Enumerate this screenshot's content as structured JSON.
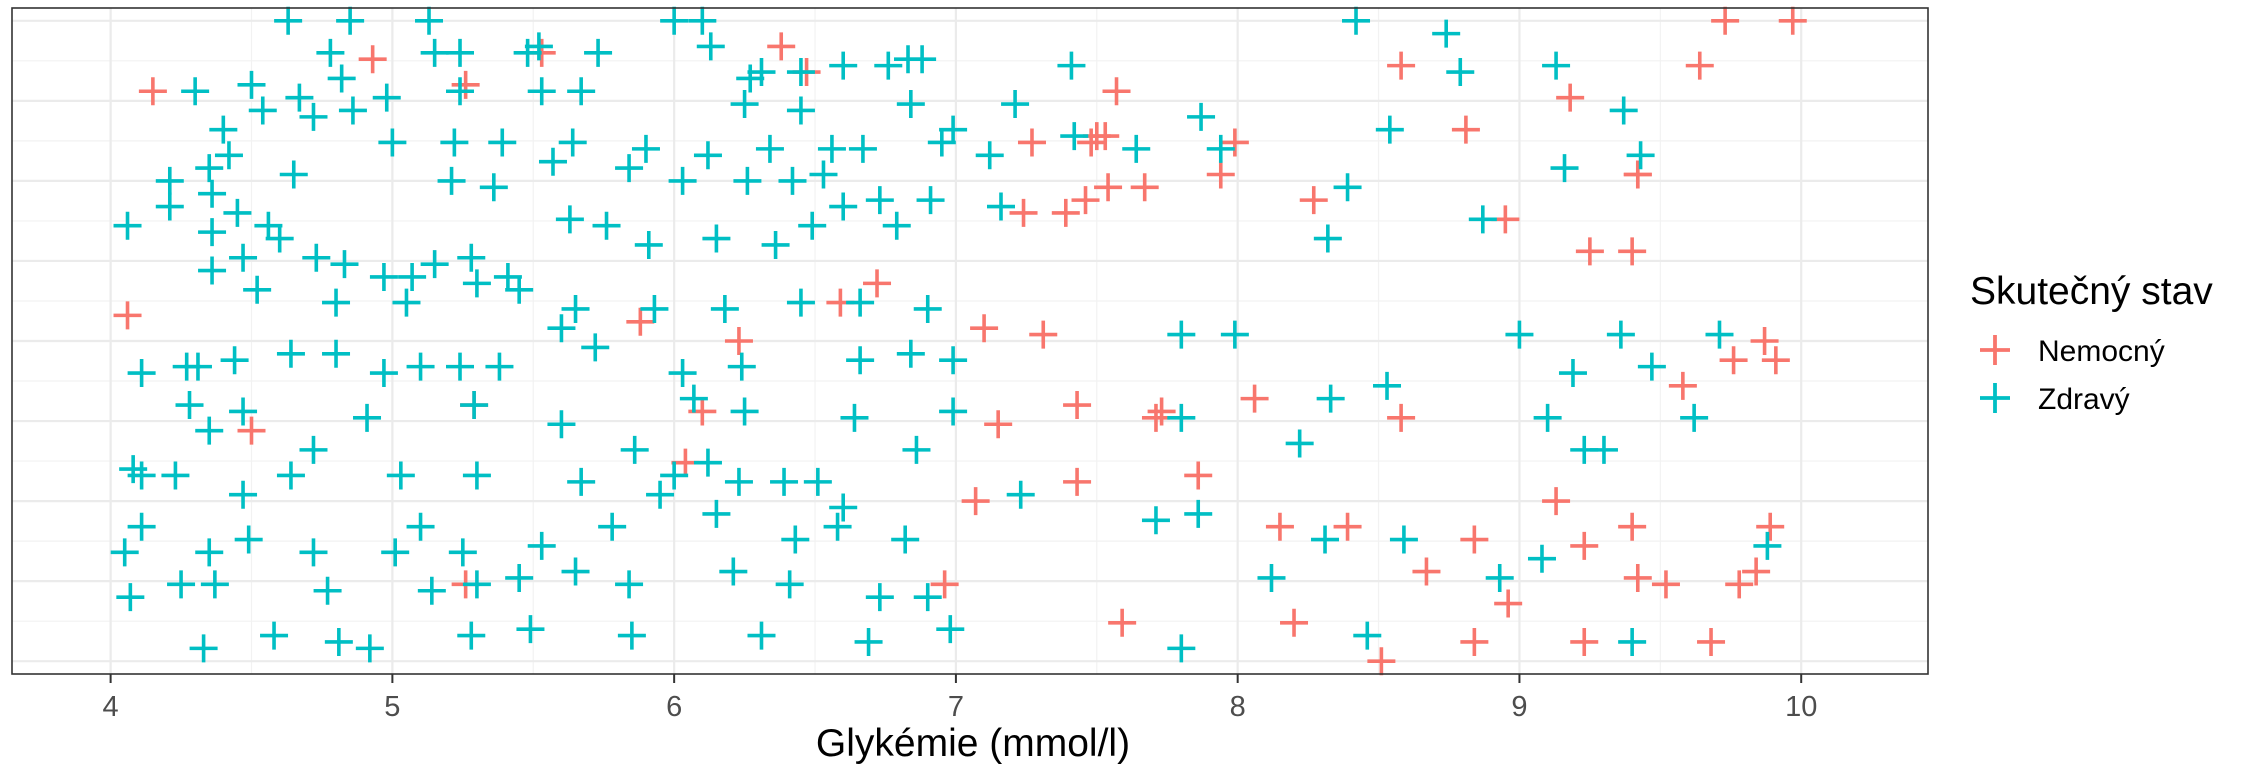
{
  "chart_data": {
    "type": "scatter",
    "xlabel": "Glykémie (mmol/l)",
    "ylabel": "",
    "xlim": [
      3.65,
      10.45
    ],
    "ylim": [
      -0.02,
      1.02
    ],
    "x_ticks": [
      "4",
      "5",
      "6",
      "7",
      "8",
      "9",
      "10"
    ],
    "y_ticks": [],
    "grid": true,
    "legend": {
      "title": "Skutečný stav",
      "position": "right",
      "entries": [
        {
          "label": "Nemocný",
          "color": "#F8766D"
        },
        {
          "label": "Zdravý",
          "color": "#00BFC4"
        }
      ]
    },
    "marker": "plus",
    "note": "y is random vertical jitter (no scale)",
    "series": [
      {
        "name": "Nemocný",
        "color": "#F8766D",
        "points": [
          [
            4.15,
            0.89
          ],
          [
            4.93,
            0.94
          ],
          [
            5.26,
            0.9
          ],
          [
            5.53,
            0.95
          ],
          [
            6.38,
            0.96
          ],
          [
            6.47,
            0.92
          ],
          [
            9.73,
            1.0
          ],
          [
            9.97,
            1.0
          ],
          [
            8.58,
            0.93
          ],
          [
            9.64,
            0.93
          ],
          [
            9.18,
            0.88
          ],
          [
            8.81,
            0.83
          ],
          [
            7.57,
            0.89
          ],
          [
            7.27,
            0.81
          ],
          [
            7.48,
            0.81
          ],
          [
            7.5,
            0.82
          ],
          [
            7.53,
            0.82
          ],
          [
            7.99,
            0.81
          ],
          [
            7.94,
            0.76
          ],
          [
            7.54,
            0.74
          ],
          [
            7.67,
            0.74
          ],
          [
            8.27,
            0.72
          ],
          [
            9.42,
            0.76
          ],
          [
            9.42,
            0.76
          ],
          [
            7.46,
            0.72
          ],
          [
            7.39,
            0.7
          ],
          [
            7.24,
            0.7
          ],
          [
            6.59,
            0.56
          ],
          [
            6.72,
            0.59
          ],
          [
            7.1,
            0.52
          ],
          [
            7.31,
            0.51
          ],
          [
            8.95,
            0.69
          ],
          [
            9.25,
            0.64
          ],
          [
            9.4,
            0.64
          ],
          [
            9.87,
            0.5
          ],
          [
            9.91,
            0.47
          ],
          [
            9.76,
            0.47
          ],
          [
            9.58,
            0.43
          ],
          [
            8.06,
            0.41
          ],
          [
            7.43,
            0.4
          ],
          [
            7.71,
            0.38
          ],
          [
            7.73,
            0.39
          ],
          [
            8.58,
            0.38
          ],
          [
            7.15,
            0.37
          ],
          [
            6.1,
            0.39
          ],
          [
            6.04,
            0.31
          ],
          [
            4.06,
            0.54
          ],
          [
            4.5,
            0.36
          ],
          [
            5.29,
            0.4
          ],
          [
            5.88,
            0.53
          ],
          [
            6.23,
            0.5
          ],
          [
            7.07,
            0.25
          ],
          [
            7.43,
            0.28
          ],
          [
            7.86,
            0.29
          ],
          [
            9.13,
            0.25
          ],
          [
            8.15,
            0.21
          ],
          [
            8.39,
            0.21
          ],
          [
            8.84,
            0.19
          ],
          [
            9.89,
            0.21
          ],
          [
            9.4,
            0.21
          ],
          [
            9.23,
            0.18
          ],
          [
            8.67,
            0.14
          ],
          [
            9.42,
            0.13
          ],
          [
            9.52,
            0.12
          ],
          [
            9.78,
            0.12
          ],
          [
            9.84,
            0.14
          ],
          [
            8.96,
            0.09
          ],
          [
            8.2,
            0.06
          ],
          [
            7.59,
            0.06
          ],
          [
            6.96,
            0.12
          ],
          [
            5.26,
            0.12
          ],
          [
            8.84,
            0.03
          ],
          [
            9.23,
            0.03
          ],
          [
            9.68,
            0.03
          ],
          [
            8.51,
            0.0
          ]
        ]
      },
      {
        "name": "Zdravý",
        "color": "#00BFC4",
        "points": [
          [
            4.3,
            0.89
          ],
          [
            4.5,
            0.9
          ],
          [
            4.63,
            1.0
          ],
          [
            4.85,
            1.0
          ],
          [
            4.78,
            0.95
          ],
          [
            4.82,
            0.91
          ],
          [
            5.13,
            1.0
          ],
          [
            5.15,
            0.95
          ],
          [
            5.24,
            0.95
          ],
          [
            5.48,
            0.95
          ],
          [
            5.52,
            0.96
          ],
          [
            5.73,
            0.95
          ],
          [
            6.0,
            1.0
          ],
          [
            6.1,
            1.0
          ],
          [
            6.13,
            0.96
          ],
          [
            6.27,
            0.91
          ],
          [
            6.31,
            0.92
          ],
          [
            6.45,
            0.92
          ],
          [
            6.6,
            0.93
          ],
          [
            6.76,
            0.93
          ],
          [
            6.83,
            0.94
          ],
          [
            6.88,
            0.94
          ],
          [
            7.41,
            0.93
          ],
          [
            7.21,
            0.87
          ],
          [
            8.42,
            1.0
          ],
          [
            8.74,
            0.98
          ],
          [
            8.79,
            0.92
          ],
          [
            9.13,
            0.93
          ],
          [
            9.37,
            0.86
          ],
          [
            8.54,
            0.83
          ],
          [
            7.87,
            0.85
          ],
          [
            7.94,
            0.8
          ],
          [
            9.43,
            0.79
          ],
          [
            9.16,
            0.77
          ],
          [
            4.4,
            0.83
          ],
          [
            4.54,
            0.86
          ],
          [
            4.67,
            0.88
          ],
          [
            4.72,
            0.85
          ],
          [
            4.86,
            0.86
          ],
          [
            4.98,
            0.88
          ],
          [
            5.24,
            0.89
          ],
          [
            5.53,
            0.89
          ],
          [
            5.67,
            0.89
          ],
          [
            6.25,
            0.87
          ],
          [
            6.45,
            0.86
          ],
          [
            6.84,
            0.87
          ],
          [
            6.99,
            0.83
          ],
          [
            4.35,
            0.77
          ],
          [
            4.42,
            0.79
          ],
          [
            4.21,
            0.75
          ],
          [
            4.21,
            0.71
          ],
          [
            4.36,
            0.73
          ],
          [
            4.45,
            0.7
          ],
          [
            4.65,
            0.76
          ],
          [
            5.0,
            0.81
          ],
          [
            5.22,
            0.81
          ],
          [
            5.39,
            0.81
          ],
          [
            5.64,
            0.81
          ],
          [
            5.9,
            0.8
          ],
          [
            6.12,
            0.79
          ],
          [
            6.34,
            0.8
          ],
          [
            6.56,
            0.8
          ],
          [
            6.67,
            0.8
          ],
          [
            6.95,
            0.81
          ],
          [
            7.12,
            0.79
          ],
          [
            7.42,
            0.82
          ],
          [
            7.64,
            0.8
          ],
          [
            5.21,
            0.75
          ],
          [
            5.36,
            0.74
          ],
          [
            5.57,
            0.78
          ],
          [
            5.84,
            0.77
          ],
          [
            6.03,
            0.75
          ],
          [
            6.26,
            0.75
          ],
          [
            6.42,
            0.75
          ],
          [
            6.53,
            0.76
          ],
          [
            6.73,
            0.72
          ],
          [
            6.91,
            0.72
          ],
          [
            4.06,
            0.68
          ],
          [
            4.36,
            0.67
          ],
          [
            4.56,
            0.68
          ],
          [
            4.6,
            0.66
          ],
          [
            4.73,
            0.63
          ],
          [
            4.83,
            0.62
          ],
          [
            4.97,
            0.6
          ],
          [
            5.07,
            0.6
          ],
          [
            5.15,
            0.62
          ],
          [
            5.28,
            0.63
          ],
          [
            5.41,
            0.6
          ],
          [
            5.63,
            0.69
          ],
          [
            5.76,
            0.68
          ],
          [
            5.91,
            0.65
          ],
          [
            6.15,
            0.66
          ],
          [
            6.36,
            0.65
          ],
          [
            6.49,
            0.68
          ],
          [
            6.6,
            0.71
          ],
          [
            6.79,
            0.68
          ],
          [
            7.16,
            0.71
          ],
          [
            8.39,
            0.74
          ],
          [
            8.32,
            0.66
          ],
          [
            8.87,
            0.69
          ],
          [
            4.36,
            0.61
          ],
          [
            4.47,
            0.63
          ],
          [
            4.52,
            0.58
          ],
          [
            4.8,
            0.56
          ],
          [
            5.05,
            0.56
          ],
          [
            5.3,
            0.59
          ],
          [
            5.45,
            0.58
          ],
          [
            5.65,
            0.55
          ],
          [
            5.93,
            0.55
          ],
          [
            6.18,
            0.55
          ],
          [
            6.45,
            0.56
          ],
          [
            6.66,
            0.56
          ],
          [
            6.9,
            0.55
          ],
          [
            4.11,
            0.45
          ],
          [
            4.27,
            0.46
          ],
          [
            4.31,
            0.46
          ],
          [
            4.44,
            0.47
          ],
          [
            4.64,
            0.48
          ],
          [
            4.8,
            0.48
          ],
          [
            4.97,
            0.45
          ],
          [
            5.1,
            0.46
          ],
          [
            5.24,
            0.46
          ],
          [
            5.38,
            0.46
          ],
          [
            5.6,
            0.52
          ],
          [
            5.72,
            0.49
          ],
          [
            6.03,
            0.45
          ],
          [
            6.24,
            0.46
          ],
          [
            6.66,
            0.47
          ],
          [
            6.84,
            0.48
          ],
          [
            6.99,
            0.47
          ],
          [
            7.8,
            0.51
          ],
          [
            7.99,
            0.51
          ],
          [
            9.0,
            0.51
          ],
          [
            9.36,
            0.51
          ],
          [
            9.71,
            0.51
          ],
          [
            8.33,
            0.41
          ],
          [
            8.53,
            0.43
          ],
          [
            9.19,
            0.45
          ],
          [
            9.47,
            0.46
          ],
          [
            9.1,
            0.38
          ],
          [
            9.62,
            0.38
          ],
          [
            4.28,
            0.4
          ],
          [
            4.35,
            0.36
          ],
          [
            4.47,
            0.39
          ],
          [
            4.91,
            0.38
          ],
          [
            5.29,
            0.4
          ],
          [
            5.6,
            0.37
          ],
          [
            6.07,
            0.41
          ],
          [
            6.25,
            0.39
          ],
          [
            6.64,
            0.38
          ],
          [
            6.99,
            0.39
          ],
          [
            7.8,
            0.38
          ],
          [
            8.22,
            0.34
          ],
          [
            9.23,
            0.33
          ],
          [
            9.3,
            0.33
          ],
          [
            4.08,
            0.3
          ],
          [
            4.11,
            0.29
          ],
          [
            4.23,
            0.29
          ],
          [
            4.47,
            0.26
          ],
          [
            4.64,
            0.29
          ],
          [
            4.72,
            0.33
          ],
          [
            5.03,
            0.29
          ],
          [
            5.3,
            0.29
          ],
          [
            5.67,
            0.28
          ],
          [
            5.86,
            0.33
          ],
          [
            6.0,
            0.29
          ],
          [
            6.12,
            0.31
          ],
          [
            6.23,
            0.28
          ],
          [
            6.39,
            0.28
          ],
          [
            6.51,
            0.28
          ],
          [
            6.86,
            0.33
          ],
          [
            6.6,
            0.24
          ],
          [
            7.23,
            0.26
          ],
          [
            7.71,
            0.22
          ],
          [
            7.86,
            0.23
          ],
          [
            4.05,
            0.17
          ],
          [
            4.11,
            0.21
          ],
          [
            4.35,
            0.17
          ],
          [
            4.49,
            0.19
          ],
          [
            4.72,
            0.17
          ],
          [
            5.01,
            0.17
          ],
          [
            5.1,
            0.21
          ],
          [
            5.25,
            0.17
          ],
          [
            5.53,
            0.18
          ],
          [
            5.78,
            0.21
          ],
          [
            5.95,
            0.26
          ],
          [
            6.15,
            0.23
          ],
          [
            6.43,
            0.19
          ],
          [
            6.58,
            0.21
          ],
          [
            6.82,
            0.19
          ],
          [
            8.31,
            0.19
          ],
          [
            8.59,
            0.19
          ],
          [
            9.08,
            0.16
          ],
          [
            9.88,
            0.18
          ],
          [
            4.07,
            0.1
          ],
          [
            4.25,
            0.12
          ],
          [
            4.37,
            0.12
          ],
          [
            4.77,
            0.11
          ],
          [
            5.14,
            0.11
          ],
          [
            5.3,
            0.12
          ],
          [
            5.45,
            0.13
          ],
          [
            5.65,
            0.14
          ],
          [
            5.84,
            0.12
          ],
          [
            6.21,
            0.14
          ],
          [
            6.41,
            0.12
          ],
          [
            6.73,
            0.1
          ],
          [
            6.9,
            0.1
          ],
          [
            8.12,
            0.13
          ],
          [
            8.93,
            0.13
          ],
          [
            4.33,
            0.02
          ],
          [
            4.58,
            0.04
          ],
          [
            4.81,
            0.03
          ],
          [
            4.92,
            0.02
          ],
          [
            5.28,
            0.04
          ],
          [
            5.49,
            0.05
          ],
          [
            5.85,
            0.04
          ],
          [
            6.31,
            0.04
          ],
          [
            6.69,
            0.03
          ],
          [
            6.98,
            0.05
          ],
          [
            7.8,
            0.02
          ],
          [
            8.46,
            0.04
          ],
          [
            9.4,
            0.03
          ]
        ]
      }
    ]
  }
}
